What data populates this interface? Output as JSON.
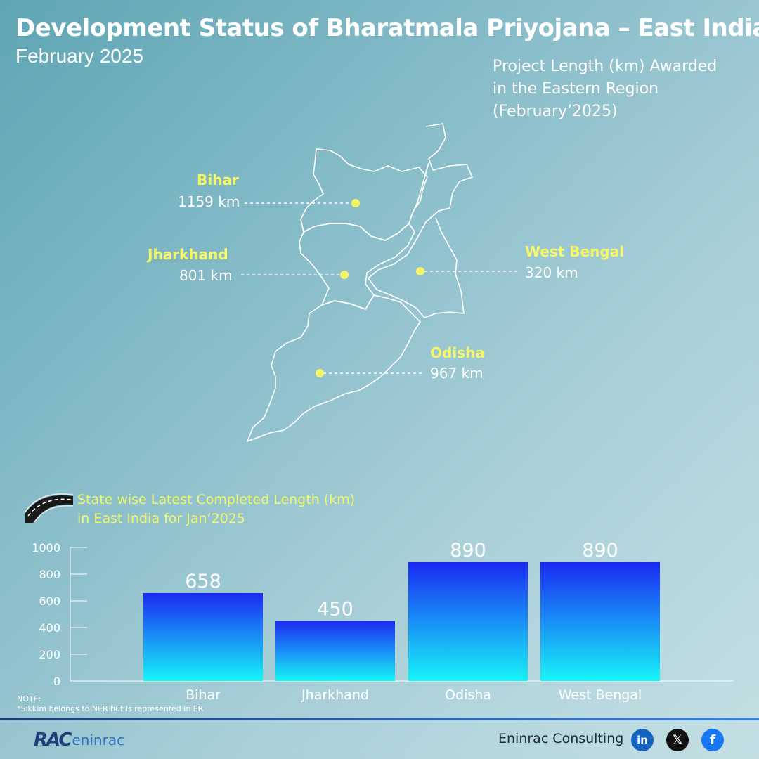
{
  "header": {
    "title": "Development Status of Bharatmala Priyojana – East India",
    "subtitle": "February 2025"
  },
  "map": {
    "caption_lines": [
      "Project  Length (km) Awarded",
      "in the Eastern Region",
      "(February’2025)"
    ],
    "states": [
      {
        "name": "Bihar",
        "awarded": "1159 km"
      },
      {
        "name": "Jharkhand",
        "awarded": "801 km"
      },
      {
        "name": "West Bengal",
        "awarded": "320 km"
      },
      {
        "name": "Odisha",
        "awarded": "967 km"
      }
    ],
    "label_color": "#f7f76a",
    "marker_color": "#f4f46a"
  },
  "chart_title_lines": [
    "State wise Latest Completed Length (km)",
    "in East India for Jan’2025"
  ],
  "chart_data": {
    "type": "bar",
    "title": "State wise Latest Completed Length (km) in East India for Jan’2025",
    "categories": [
      "Bihar",
      "Jharkhand",
      "Odisha",
      "West Bengal"
    ],
    "values": [
      658,
      450,
      890,
      890
    ],
    "ylim": [
      0,
      1000
    ],
    "yticks": [
      0,
      200,
      400,
      600,
      800,
      1000
    ],
    "xlabel": "",
    "ylabel": "",
    "grid": false,
    "bar_gradient": [
      "#1a2af2",
      "#18f4f8"
    ]
  },
  "note": {
    "heading": "NOTE:",
    "text": "*Sikkim belongs to NER but is represented in ER"
  },
  "footer": {
    "logo_rac": "RAC",
    "logo_eninrac": "eninrac",
    "company": "Eninrac Consulting",
    "social_icons": [
      "linkedin-icon",
      "x-icon",
      "facebook-icon"
    ],
    "linkedin_glyph": "in",
    "x_glyph": "𝕏",
    "facebook_glyph": "f"
  }
}
